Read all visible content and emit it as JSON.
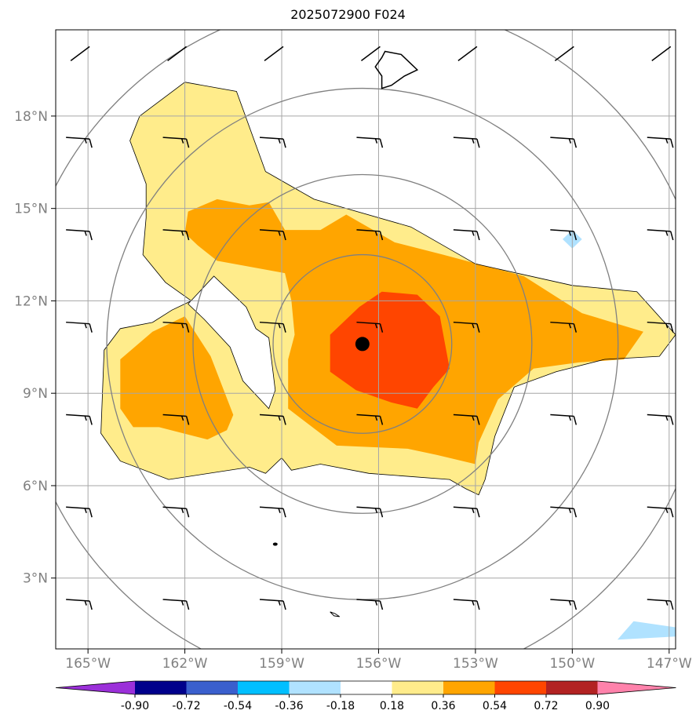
{
  "chart_data": {
    "type": "map",
    "title": "2025072900 F024",
    "lon_range": [
      -166,
      -146.8
    ],
    "lat_range": [
      0.7,
      20.8
    ],
    "x_ticks": [
      {
        "value": -165,
        "label": "165°W"
      },
      {
        "value": -162,
        "label": "162°W"
      },
      {
        "value": -159,
        "label": "159°W"
      },
      {
        "value": -156,
        "label": "156°W"
      },
      {
        "value": -153,
        "label": "153°W"
      },
      {
        "value": -150,
        "label": "150°W"
      },
      {
        "value": -147,
        "label": "147°W"
      }
    ],
    "y_ticks": [
      {
        "value": 3,
        "label": "3°N"
      },
      {
        "value": 6,
        "label": "6°N"
      },
      {
        "value": 9,
        "label": "9°N"
      },
      {
        "value": 12,
        "label": "12°N"
      },
      {
        "value": 15,
        "label": "15°N"
      },
      {
        "value": 18,
        "label": "18°N"
      }
    ],
    "grid": true,
    "center": {
      "lon": -156.5,
      "lat": 10.6
    },
    "colorbar": {
      "ticks": [
        "-0.90",
        "-0.72",
        "-0.54",
        "-0.36",
        "-0.18",
        "0.18",
        "0.36",
        "0.54",
        "0.72",
        "0.90"
      ],
      "colors": [
        "#9b30d9",
        "#00008b",
        "#3a5fcd",
        "#00bfff",
        "#b0e2ff",
        "#ffffff",
        "#ffec8b",
        "#ffa500",
        "#ff4500",
        "#b22222",
        "#ff82ab"
      ],
      "extend": "both"
    },
    "fields": {
      "light_yellow": [
        [
          -163.4,
          18
        ],
        [
          -162,
          19.1
        ],
        [
          -160.4,
          18.8
        ],
        [
          -159.5,
          16.2
        ],
        [
          -158,
          15.3
        ],
        [
          -155,
          14.4
        ],
        [
          -153,
          13.2
        ],
        [
          -150,
          12.5
        ],
        [
          -148,
          12.3
        ],
        [
          -146.8,
          10.9
        ],
        [
          -147.3,
          10.2
        ],
        [
          -149,
          10.1
        ],
        [
          -150.5,
          9.7
        ],
        [
          -151.8,
          9.2
        ],
        [
          -152.4,
          7.6
        ],
        [
          -152.7,
          6.2
        ],
        [
          -152.9,
          5.7
        ],
        [
          -153.3,
          5.9
        ],
        [
          -153.8,
          6.2
        ],
        [
          -156.3,
          6.4
        ],
        [
          -157.8,
          6.7
        ],
        [
          -158.7,
          6.5
        ],
        [
          -159,
          6.9
        ],
        [
          -159.5,
          6.4
        ],
        [
          -160,
          6.6
        ],
        [
          -162.5,
          6.2
        ],
        [
          -164,
          6.8
        ],
        [
          -164.6,
          7.7
        ],
        [
          -164.5,
          10.4
        ],
        [
          -164,
          11.1
        ],
        [
          -163,
          11.3
        ],
        [
          -162.4,
          11.7
        ],
        [
          -161.8,
          12
        ],
        [
          -162.6,
          12.6
        ],
        [
          -163.3,
          13.5
        ],
        [
          -163.2,
          14.7
        ],
        [
          -163.2,
          15.8
        ],
        [
          -163.7,
          17.2
        ]
      ],
      "orange": [
        [
          -161.9,
          14.9
        ],
        [
          -161,
          15.3
        ],
        [
          -160,
          15.1
        ],
        [
          -159.4,
          15.2
        ],
        [
          -158.9,
          14.3
        ],
        [
          -157.8,
          14.3
        ],
        [
          -157,
          14.8
        ],
        [
          -155.5,
          13.9
        ],
        [
          -154,
          13.5
        ],
        [
          -151.5,
          12.8
        ],
        [
          -149.7,
          11.6
        ],
        [
          -147.8,
          11
        ],
        [
          -148.4,
          10.1
        ],
        [
          -149.8,
          10
        ],
        [
          -151.2,
          9.8
        ],
        [
          -152.3,
          8.8
        ],
        [
          -152.9,
          7.4
        ],
        [
          -153,
          6.7
        ],
        [
          -154.2,
          7
        ],
        [
          -155.1,
          7.2
        ],
        [
          -157.3,
          7.3
        ],
        [
          -158.8,
          8.5
        ],
        [
          -158.8,
          9.2
        ],
        [
          -158.8,
          10.1
        ],
        [
          -158.6,
          10.9
        ],
        [
          -158.7,
          12
        ],
        [
          -158.9,
          12.9
        ],
        [
          -161,
          13.3
        ],
        [
          -161.6,
          13.8
        ],
        [
          -162,
          14.2
        ]
      ],
      "orange_left": [
        [
          -164,
          10.1
        ],
        [
          -163,
          11
        ],
        [
          -162,
          11.5
        ],
        [
          -161.2,
          10.2
        ],
        [
          -160.5,
          8.3
        ],
        [
          -160.7,
          7.8
        ],
        [
          -161.3,
          7.5
        ],
        [
          -162.8,
          7.9
        ],
        [
          -163.6,
          7.9
        ],
        [
          -164,
          8.5
        ]
      ],
      "red": [
        [
          -156.6,
          11.8
        ],
        [
          -155.9,
          12.3
        ],
        [
          -154.8,
          12.2
        ],
        [
          -154.1,
          11.5
        ],
        [
          -153.8,
          9.8
        ],
        [
          -154.3,
          9.2
        ],
        [
          -154.8,
          8.5
        ],
        [
          -155.6,
          8.7
        ],
        [
          -156.7,
          9.1
        ],
        [
          -157.5,
          9.7
        ],
        [
          -157.5,
          10.9
        ]
      ],
      "blue_diamond": [
        [
          -150,
          14.3
        ],
        [
          -149.7,
          14
        ],
        [
          -150,
          13.7
        ],
        [
          -150.3,
          14
        ]
      ],
      "blue_corner": [
        [
          -148.1,
          1.6
        ],
        [
          -146.8,
          1.4
        ],
        [
          -146.8,
          1.1
        ],
        [
          -148.6,
          1
        ]
      ]
    },
    "range_rings_deg": [
      2.9,
      5.5,
      8.3,
      11.2
    ]
  }
}
